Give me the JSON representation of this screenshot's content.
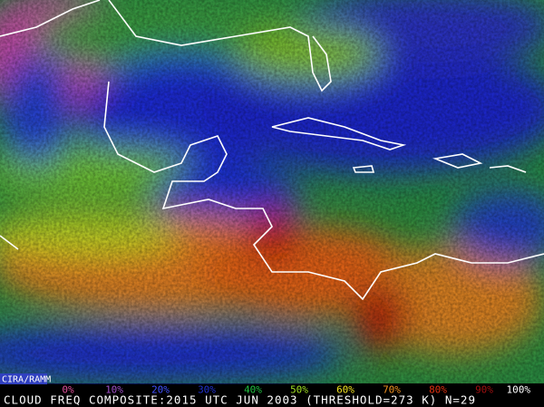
{
  "credit": "CIRA/RAMM",
  "colorbar": [
    {
      "label": "0%",
      "color": "#e0509a"
    },
    {
      "label": "10%",
      "color": "#a050c8"
    },
    {
      "label": "20%",
      "color": "#4050ff"
    },
    {
      "label": "30%",
      "color": "#2030d0"
    },
    {
      "label": "40%",
      "color": "#20c040"
    },
    {
      "label": "50%",
      "color": "#a0e020"
    },
    {
      "label": "60%",
      "color": "#f0e020"
    },
    {
      "label": "70%",
      "color": "#f09020"
    },
    {
      "label": "80%",
      "color": "#e03010"
    },
    {
      "label": "90%",
      "color": "#a01010"
    },
    {
      "label": "100%",
      "color": "#ffffff"
    }
  ],
  "caption": "CLOUD FREQ COMPOSITE:2015 UTC JUN 2003 (THRESHOLD=273 K) N=29"
}
